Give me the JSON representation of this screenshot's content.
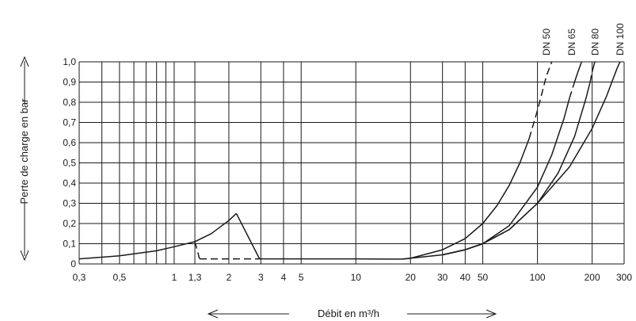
{
  "chart_data": {
    "type": "line",
    "xscale": "log",
    "xlim": [
      0.3,
      300
    ],
    "ylim": [
      0,
      1.0
    ],
    "grid": true,
    "ylabel": "Perte de charge en bar",
    "xlabel": "Débit en m³/h",
    "xticks": [
      {
        "value": 0.3,
        "label": "0,3"
      },
      {
        "value": 0.5,
        "label": "0,5"
      },
      {
        "value": 1,
        "label": "1"
      },
      {
        "value": 1.3,
        "label": "1,3"
      },
      {
        "value": 2,
        "label": "2"
      },
      {
        "value": 3,
        "label": "3"
      },
      {
        "value": 4,
        "label": "4"
      },
      {
        "value": 5,
        "label": "5"
      },
      {
        "value": 10,
        "label": "10"
      },
      {
        "value": 20,
        "label": "20"
      },
      {
        "value": 30,
        "label": "30"
      },
      {
        "value": 40,
        "label": "40"
      },
      {
        "value": 50,
        "label": "50"
      },
      {
        "value": 100,
        "label": "100"
      },
      {
        "value": 200,
        "label": "200"
      },
      {
        "value": 300,
        "label": "300"
      }
    ],
    "xgrid": [
      0.3,
      0.4,
      0.5,
      0.6,
      0.7,
      0.8,
      0.9,
      1,
      1.3,
      2,
      3,
      4,
      5,
      10,
      20,
      30,
      40,
      50,
      100,
      200,
      300
    ],
    "yticks": [
      {
        "value": 0.0,
        "label": "0"
      },
      {
        "value": 0.1,
        "label": "0,1"
      },
      {
        "value": 0.2,
        "label": "0,2"
      },
      {
        "value": 0.3,
        "label": "0,3"
      },
      {
        "value": 0.4,
        "label": "0,4"
      },
      {
        "value": 0.5,
        "label": "0,5"
      },
      {
        "value": 0.6,
        "label": "0,6"
      },
      {
        "value": 0.7,
        "label": "0,7"
      },
      {
        "value": 0.8,
        "label": "0,8"
      },
      {
        "value": 0.9,
        "label": "0,9"
      },
      {
        "value": 1.0,
        "label": "1,0"
      }
    ],
    "series": [
      {
        "name": "",
        "style": "solid",
        "x": [
          0.3,
          0.5,
          0.8,
          1.0,
          1.3
        ],
        "y": [
          0.025,
          0.04,
          0.065,
          0.085,
          0.11
        ]
      },
      {
        "name": "",
        "style": "dashed",
        "x": [
          1.3,
          1.38
        ],
        "y": [
          0.11,
          0.025
        ]
      },
      {
        "name": "",
        "style": "solid",
        "x": [
          1.3,
          1.6,
          2.0,
          2.2
        ],
        "y": [
          0.11,
          0.15,
          0.215,
          0.25
        ]
      },
      {
        "name": "",
        "style": "solid",
        "x": [
          2.2,
          2.95
        ],
        "y": [
          0.25,
          0.025
        ]
      },
      {
        "name": "",
        "style": "dashed",
        "x": [
          1.38,
          2.95
        ],
        "y": [
          0.025,
          0.025
        ]
      },
      {
        "name": "",
        "style": "solid",
        "x": [
          2.95,
          5,
          10,
          15,
          18
        ],
        "y": [
          0.025,
          0.025,
          0.025,
          0.024,
          0.024
        ]
      },
      {
        "name": "DN 50",
        "style": "solid",
        "x": [
          18,
          20,
          30,
          40,
          50,
          60,
          70,
          80,
          90
        ],
        "y": [
          0.024,
          0.028,
          0.07,
          0.125,
          0.2,
          0.29,
          0.39,
          0.5,
          0.62
        ]
      },
      {
        "name": "DN 50",
        "style": "dashed",
        "x": [
          90,
          100,
          112,
          120
        ],
        "y": [
          0.62,
          0.76,
          0.93,
          1.0
        ]
      },
      {
        "name": "DN 65",
        "style": "solid",
        "x": [
          18,
          30,
          40,
          50,
          70,
          100,
          120,
          140,
          150
        ],
        "y": [
          0.024,
          0.045,
          0.07,
          0.1,
          0.19,
          0.38,
          0.54,
          0.72,
          0.82
        ]
      },
      {
        "name": "DN 65",
        "style": "dashed",
        "x": [
          150,
          160
        ],
        "y": [
          0.82,
          0.9
        ]
      },
      {
        "name": "DN 65",
        "style": "solid",
        "x": [
          160,
          167,
          175
        ],
        "y": [
          0.9,
          0.95,
          1.0
        ]
      },
      {
        "name": "DN 80",
        "style": "solid",
        "x": [
          30,
          40,
          50,
          70,
          100,
          130,
          160,
          185,
          195
        ],
        "y": [
          0.045,
          0.07,
          0.1,
          0.17,
          0.3,
          0.45,
          0.63,
          0.82,
          0.9
        ]
      },
      {
        "name": "DN 80",
        "style": "dashed",
        "x": [
          195,
          200
        ],
        "y": [
          0.9,
          0.95
        ]
      },
      {
        "name": "DN 80",
        "style": "solid",
        "x": [
          200,
          207
        ],
        "y": [
          0.95,
          1.0
        ]
      },
      {
        "name": "DN 100",
        "style": "solid",
        "x": [
          30,
          40,
          50,
          70,
          100,
          150,
          200,
          240,
          275
        ],
        "y": [
          0.045,
          0.07,
          0.1,
          0.17,
          0.3,
          0.48,
          0.67,
          0.83,
          0.97
        ]
      },
      {
        "name": "DN 100",
        "style": "dashed",
        "x": [
          275,
          285
        ],
        "y": [
          0.97,
          1.0
        ]
      }
    ],
    "series_labels": [
      {
        "text": "DN 50",
        "x": 112
      },
      {
        "text": "DN 65",
        "x": 155
      },
      {
        "text": "DN 80",
        "x": 208
      },
      {
        "text": "DN 100",
        "x": 285
      }
    ]
  }
}
